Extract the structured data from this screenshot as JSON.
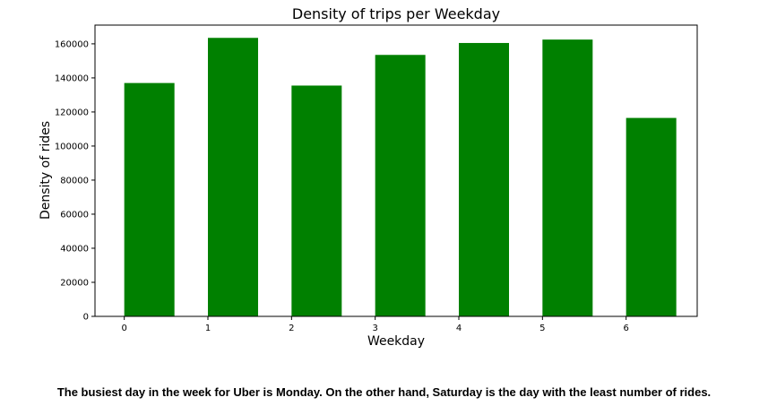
{
  "chart_data": {
    "type": "bar",
    "title": "Density of trips per Weekday",
    "xlabel": "Weekday",
    "ylabel": "Density of rides",
    "categories": [
      "0",
      "1",
      "2",
      "3",
      "4",
      "5",
      "6"
    ],
    "values": [
      137000,
      163500,
      135500,
      153500,
      160500,
      162500,
      116500
    ],
    "x_ticks": [
      "0",
      "1",
      "2",
      "3",
      "4",
      "5",
      "6"
    ],
    "y_ticks": [
      "0",
      "20000",
      "40000",
      "60000",
      "80000",
      "100000",
      "120000",
      "140000",
      "160000"
    ],
    "ylim": [
      0,
      171000
    ],
    "xlim": [
      -0.35,
      6.85
    ],
    "bar_color": "#008000",
    "grid": false,
    "legend": "none"
  },
  "caption": "The busiest day in the week for Uber is Monday. On the other hand, Saturday is the day with the least number of rides."
}
